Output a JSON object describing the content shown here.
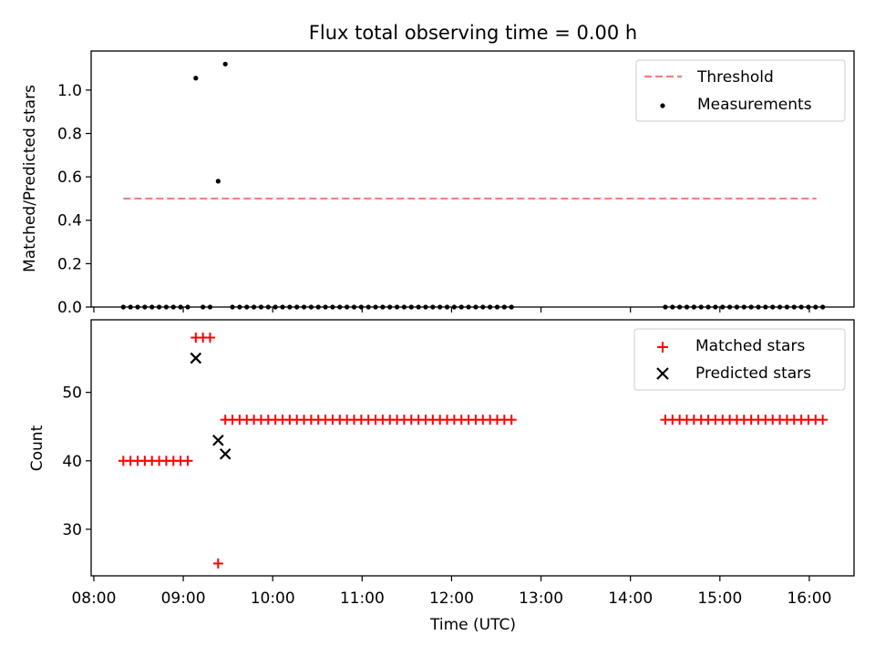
{
  "chart_data": [
    {
      "type": "scatter",
      "title": "Flux total observing time = 0.00 h",
      "xlabel": "",
      "ylabel": "Matched/Predicted stars",
      "x_unit": "hours (UTC)",
      "xlim": [
        7.97,
        16.5
      ],
      "ylim": [
        0.0,
        1.18
      ],
      "yticks": [
        0.0,
        0.2,
        0.4,
        0.6,
        0.8,
        1.0
      ],
      "ytick_labels": [
        "0.0",
        "0.2",
        "0.4",
        "0.6",
        "0.8",
        "1.0"
      ],
      "xticks": [
        8,
        9,
        10,
        11,
        12,
        13,
        14,
        15,
        16
      ],
      "legend_position": "top-right",
      "series": [
        {
          "name": "Threshold",
          "kind": "line",
          "style": "dashed",
          "color": "#f08080",
          "x": [
            8.33,
            16.08
          ],
          "y": [
            0.5,
            0.5
          ]
        },
        {
          "name": "Measurements",
          "kind": "scatter",
          "marker": "dot",
          "color": "#000000",
          "x": [
            8.33,
            8.41,
            8.49,
            8.57,
            8.65,
            8.73,
            8.81,
            8.89,
            8.97,
            9.05,
            9.14,
            9.22,
            9.3,
            9.39,
            9.47,
            9.55,
            9.63,
            9.71,
            9.79,
            9.87,
            9.95,
            10.03,
            10.11,
            10.19,
            10.27,
            10.35,
            10.43,
            10.51,
            10.59,
            10.67,
            10.75,
            10.83,
            10.91,
            10.99,
            11.07,
            11.15,
            11.23,
            11.31,
            11.39,
            11.47,
            11.55,
            11.63,
            11.71,
            11.79,
            11.87,
            11.95,
            12.03,
            12.11,
            12.19,
            12.27,
            12.35,
            12.43,
            12.51,
            12.59,
            12.67,
            14.39,
            14.47,
            14.55,
            14.63,
            14.71,
            14.79,
            14.87,
            14.95,
            15.03,
            15.11,
            15.19,
            15.27,
            15.35,
            15.43,
            15.51,
            15.59,
            15.67,
            15.75,
            15.83,
            15.91,
            15.99,
            16.07,
            16.15
          ],
          "y": [
            0,
            0,
            0,
            0,
            0,
            0,
            0,
            0,
            0,
            0,
            1.055,
            0,
            0,
            0.58,
            1.12,
            0,
            0,
            0,
            0,
            0,
            0,
            0,
            0,
            0,
            0,
            0,
            0,
            0,
            0,
            0,
            0,
            0,
            0,
            0,
            0,
            0,
            0,
            0,
            0,
            0,
            0,
            0,
            0,
            0,
            0,
            0,
            0,
            0,
            0,
            0,
            0,
            0,
            0,
            0,
            0,
            0,
            0,
            0,
            0,
            0,
            0,
            0,
            0,
            0,
            0,
            0,
            0,
            0,
            0,
            0,
            0,
            0,
            0,
            0,
            0,
            0,
            0,
            0
          ]
        }
      ]
    },
    {
      "type": "scatter",
      "title": "",
      "xlabel": "Time (UTC)",
      "ylabel": "Count",
      "x_unit": "hours (UTC)",
      "xlim": [
        7.97,
        16.5
      ],
      "ylim": [
        23.2,
        60.6
      ],
      "yticks": [
        30,
        40,
        50
      ],
      "ytick_labels": [
        "30",
        "40",
        "50"
      ],
      "xticks": [
        8,
        9,
        10,
        11,
        12,
        13,
        14,
        15,
        16
      ],
      "xtick_labels": [
        "08:00",
        "09:00",
        "10:00",
        "11:00",
        "12:00",
        "13:00",
        "14:00",
        "15:00",
        "16:00"
      ],
      "legend_position": "top-right",
      "series": [
        {
          "name": "Matched stars",
          "kind": "scatter",
          "marker": "plus",
          "color": "#ff0000",
          "x": [
            8.33,
            8.41,
            8.49,
            8.57,
            8.65,
            8.73,
            8.81,
            8.89,
            8.97,
            9.05,
            9.14,
            9.22,
            9.3,
            9.39,
            9.47,
            9.55,
            9.63,
            9.71,
            9.79,
            9.87,
            9.95,
            10.03,
            10.11,
            10.19,
            10.27,
            10.35,
            10.43,
            10.51,
            10.59,
            10.67,
            10.75,
            10.83,
            10.91,
            10.99,
            11.07,
            11.15,
            11.23,
            11.31,
            11.39,
            11.47,
            11.55,
            11.63,
            11.71,
            11.79,
            11.87,
            11.95,
            12.03,
            12.11,
            12.19,
            12.27,
            12.35,
            12.43,
            12.51,
            12.59,
            12.67,
            14.39,
            14.47,
            14.55,
            14.63,
            14.71,
            14.79,
            14.87,
            14.95,
            15.03,
            15.11,
            15.19,
            15.27,
            15.35,
            15.43,
            15.51,
            15.59,
            15.67,
            15.75,
            15.83,
            15.91,
            15.99,
            16.07,
            16.15
          ],
          "y": [
            40,
            40,
            40,
            40,
            40,
            40,
            40,
            40,
            40,
            40,
            58,
            58,
            58,
            25,
            46,
            46,
            46,
            46,
            46,
            46,
            46,
            46,
            46,
            46,
            46,
            46,
            46,
            46,
            46,
            46,
            46,
            46,
            46,
            46,
            46,
            46,
            46,
            46,
            46,
            46,
            46,
            46,
            46,
            46,
            46,
            46,
            46,
            46,
            46,
            46,
            46,
            46,
            46,
            46,
            46,
            46,
            46,
            46,
            46,
            46,
            46,
            46,
            46,
            46,
            46,
            46,
            46,
            46,
            46,
            46,
            46,
            46,
            46,
            46,
            46,
            46,
            46,
            46
          ]
        },
        {
          "name": "Predicted stars",
          "kind": "scatter",
          "marker": "x",
          "color": "#000000",
          "x": [
            9.14,
            9.39,
            9.47
          ],
          "y": [
            55,
            43,
            41
          ]
        }
      ]
    }
  ]
}
